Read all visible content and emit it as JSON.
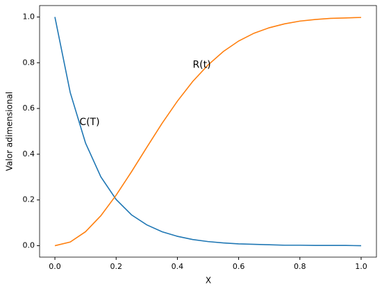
{
  "chart_data": {
    "type": "line",
    "xlabel": "X",
    "ylabel": "Valor adimensional",
    "x": [
      0,
      0.05,
      0.1,
      0.15,
      0.2,
      0.25,
      0.3,
      0.35,
      0.4,
      0.45,
      0.5,
      0.55,
      0.6,
      0.65,
      0.7,
      0.75,
      0.8,
      0.85,
      0.9,
      0.95,
      1
    ],
    "series": [
      {
        "color": "#1f77b4",
        "values": [
          1,
          0.67,
          0.449,
          0.301,
          0.202,
          0.135,
          0.091,
          0.061,
          0.041,
          0.027,
          0.018,
          0.012,
          0.008,
          0.006,
          0.004,
          0.002,
          0.002,
          0.001,
          0.001,
          0.001,
          0.0
        ]
      },
      {
        "color": "#ff7f0e",
        "values": [
          0,
          0.016,
          0.061,
          0.131,
          0.221,
          0.323,
          0.43,
          0.535,
          0.632,
          0.718,
          0.79,
          0.849,
          0.895,
          0.929,
          0.953,
          0.97,
          0.982,
          0.989,
          0.994,
          0.996,
          0.998
        ]
      }
    ],
    "annotations": [
      {
        "text": "C(T)",
        "x": 0.08,
        "y": 0.54
      },
      {
        "text": "R(t)",
        "x": 0.45,
        "y": 0.79
      }
    ],
    "xlim": [
      -0.05,
      1.05
    ],
    "ylim": [
      -0.05,
      1.05
    ],
    "xticks": [
      {
        "value": 0,
        "label": "0.0"
      },
      0.2,
      0.4,
      0.6,
      0.8,
      {
        "value": 1,
        "label": "1.0"
      }
    ],
    "yticks": [
      {
        "value": 0,
        "label": "0.0"
      },
      0.2,
      0.4,
      0.6,
      0.8,
      {
        "value": 1,
        "label": "1.0"
      }
    ]
  }
}
